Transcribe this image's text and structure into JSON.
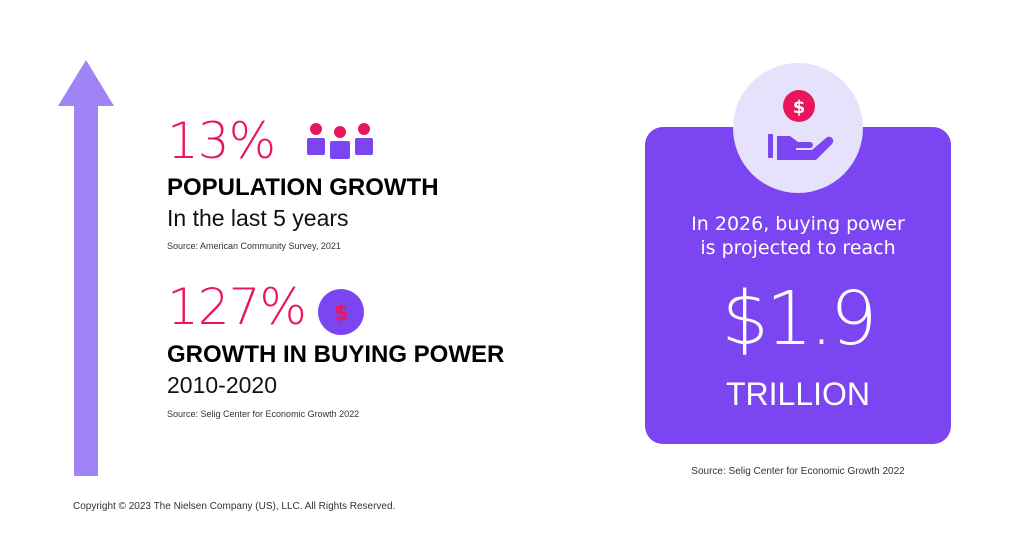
{
  "colors": {
    "accent_pink": "#e8175d",
    "accent_purple": "#7b45f1",
    "arrow_purple": "#a084f5",
    "light_lavender": "#e6e2fb"
  },
  "stats": [
    {
      "value": "13%",
      "icon": "people-group-icon",
      "title": "POPULATION GROWTH",
      "subtitle": "In the last 5 years",
      "source": "Source: American Community Survey, 2021"
    },
    {
      "value": "127%",
      "icon": "dollar-coin-icon",
      "title": "GROWTH IN BUYING POWER",
      "subtitle": "2010-2020",
      "source": "Source: Selig Center for Economic Growth 2022"
    }
  ],
  "projection": {
    "icon": "hand-holding-dollar-icon",
    "line1": "In 2026, buying power",
    "line2": "is projected to reach",
    "amount": "$1.9",
    "unit": "TRILLION",
    "source": "Source: Selig Center for Economic Growth 2022"
  },
  "copyright": "Copyright © 2023 The Nielsen Company (US), LLC. All Rights Reserved."
}
